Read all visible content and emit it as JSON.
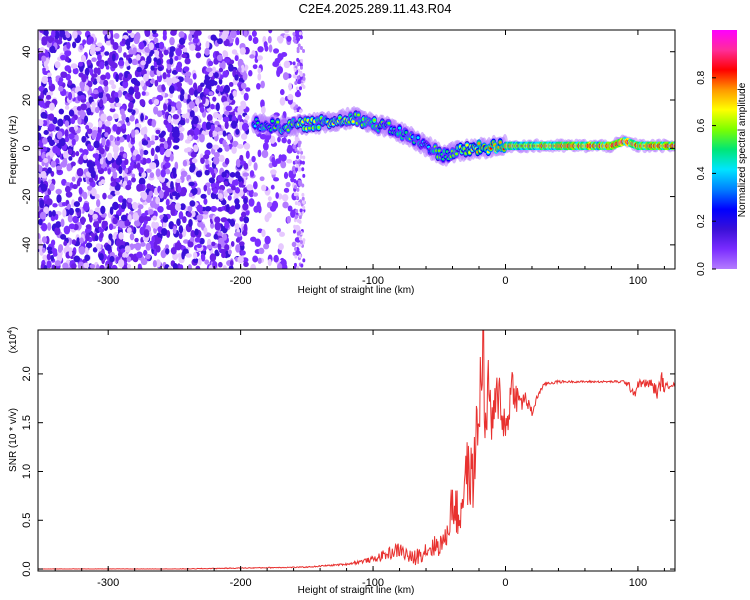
{
  "title": "C2E4.2025.289.11.43.R04",
  "colors": {
    "background": "#ffffff",
    "snr_line": "#e8312f",
    "noise_purple": "#6a1fe8",
    "colormap": [
      "#ffffff",
      "#e6c8ff",
      "#b47cff",
      "#7a2cff",
      "#3a10d8",
      "#0000ff",
      "#0080ff",
      "#00e5ff",
      "#00e676",
      "#7cff00",
      "#ffff00",
      "#ff9800",
      "#ff0000",
      "#ff2d9a",
      "#ff00ff"
    ]
  },
  "chart_data": [
    {
      "type": "heatmap",
      "xlabel": "Height of straight line (km)",
      "ylabel": "Frequency (Hz)",
      "xlim": [
        -353,
        128
      ],
      "ylim": [
        -50,
        49
      ],
      "x_ticks": [
        -300,
        -200,
        -100,
        0,
        100
      ],
      "x_tick_labels": [
        "-300",
        "-200",
        "-100",
        "0",
        "100"
      ],
      "y_ticks": [
        -40,
        -20,
        0,
        20,
        40
      ],
      "y_tick_labels": [
        "-40",
        "-20",
        "0",
        "20",
        "40"
      ],
      "colorbar": {
        "label": "Normalized spectral amplitude",
        "range": [
          0,
          1
        ],
        "ticks": [
          0.0,
          0.2,
          0.4,
          0.6,
          0.8
        ],
        "tick_labels": [
          "0.0",
          "0.2",
          "0.4",
          "0.6",
          "0.8"
        ]
      },
      "ridge": {
        "x": [
          -190,
          -170,
          -150,
          -130,
          -115,
          -100,
          -85,
          -70,
          -60,
          -50,
          -45,
          -35,
          -20,
          0,
          20,
          40,
          60,
          80,
          90,
          100,
          128
        ],
        "y": [
          10,
          9,
          10,
          11,
          13,
          10,
          8,
          4,
          1,
          -2,
          -3,
          -1,
          0,
          1,
          1,
          1,
          1,
          1,
          3,
          1,
          1
        ],
        "amplitude": [
          0.35,
          0.45,
          0.5,
          0.5,
          0.5,
          0.45,
          0.4,
          0.4,
          0.35,
          0.45,
          0.4,
          0.5,
          0.6,
          0.75,
          0.8,
          0.85,
          0.85,
          0.85,
          0.9,
          0.85,
          0.85
        ]
      },
      "noise_region_x": [
        -353,
        -155
      ]
    },
    {
      "type": "line",
      "xlabel": "Height of straight line (km)",
      "ylabel": "SNR (10 * v/v)",
      "y_scale_label": "(x10",
      "y_scale_exponent": "4",
      "y_scale_suffix": ")",
      "xlim": [
        -353,
        128
      ],
      "ylim": [
        -0.02,
        2.45
      ],
      "x_ticks": [
        -300,
        -200,
        -100,
        0,
        100
      ],
      "x_tick_labels": [
        "-300",
        "-200",
        "-100",
        "0",
        "100"
      ],
      "y_ticks": [
        0.0,
        0.5,
        1.0,
        1.5,
        2.0
      ],
      "y_tick_labels": [
        "0.0",
        "0.5",
        "1.0",
        "1.5",
        "2.0"
      ],
      "series": [
        {
          "x": [
            -353,
            -300,
            -250,
            -200,
            -150,
            -120,
            -100,
            -90,
            -80,
            -70,
            -60,
            -50,
            -45,
            -40,
            -35,
            -30,
            -25,
            -20,
            -17,
            -15,
            -12,
            -10,
            -5,
            0,
            5,
            10,
            15,
            20,
            25,
            30,
            40,
            50,
            60,
            70,
            80,
            90,
            95,
            98,
            100,
            110,
            115,
            118,
            120,
            125,
            128
          ],
          "y": [
            0.0,
            0.0,
            0.0,
            0.01,
            0.02,
            0.05,
            0.1,
            0.15,
            0.2,
            0.1,
            0.2,
            0.25,
            0.3,
            0.7,
            0.5,
            1.0,
            0.9,
            1.6,
            2.4,
            1.4,
            1.9,
            1.4,
            1.85,
            1.4,
            1.9,
            1.7,
            1.75,
            1.6,
            1.8,
            1.9,
            1.92,
            1.92,
            1.92,
            1.92,
            1.92,
            1.92,
            1.85,
            1.8,
            1.9,
            1.9,
            1.8,
            1.95,
            1.85,
            1.9,
            1.88
          ],
          "noise_amplitude": [
            0.003,
            0.003,
            0.003,
            0.004,
            0.005,
            0.01,
            0.03,
            0.06,
            0.08,
            0.08,
            0.1,
            0.12,
            0.12,
            0.25,
            0.25,
            0.35,
            0.35,
            0.45,
            0.45,
            0.45,
            0.4,
            0.35,
            0.3,
            0.25,
            0.2,
            0.15,
            0.08,
            0.05,
            0.03,
            0.02,
            0.015,
            0.01,
            0.01,
            0.01,
            0.01,
            0.02,
            0.05,
            0.05,
            0.04,
            0.05,
            0.08,
            0.08,
            0.05,
            0.03,
            0.02
          ]
        }
      ]
    }
  ]
}
